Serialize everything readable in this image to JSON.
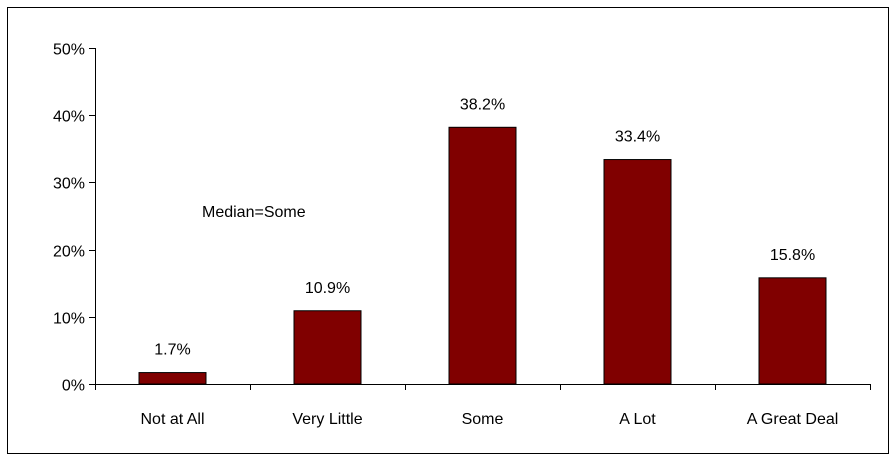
{
  "chart_data": {
    "type": "bar",
    "categories": [
      "Not at All",
      "Very Little",
      "Some",
      "A Lot",
      "A Great Deal"
    ],
    "values": [
      1.7,
      10.9,
      38.2,
      33.4,
      15.8
    ],
    "data_labels": [
      "1.7%",
      "10.9%",
      "38.2%",
      "33.4%",
      "15.8%"
    ],
    "ylim": [
      0,
      50
    ],
    "y_ticks": [
      0,
      10,
      20,
      30,
      40,
      50
    ],
    "y_tick_labels": [
      "0%",
      "10%",
      "20%",
      "30%",
      "40%",
      "50%"
    ],
    "annotation": "Median=Some",
    "title": "",
    "xlabel": "",
    "ylabel": "",
    "grid": false,
    "legend": "none",
    "bar_color": "#800000",
    "border_color": "#000000"
  }
}
